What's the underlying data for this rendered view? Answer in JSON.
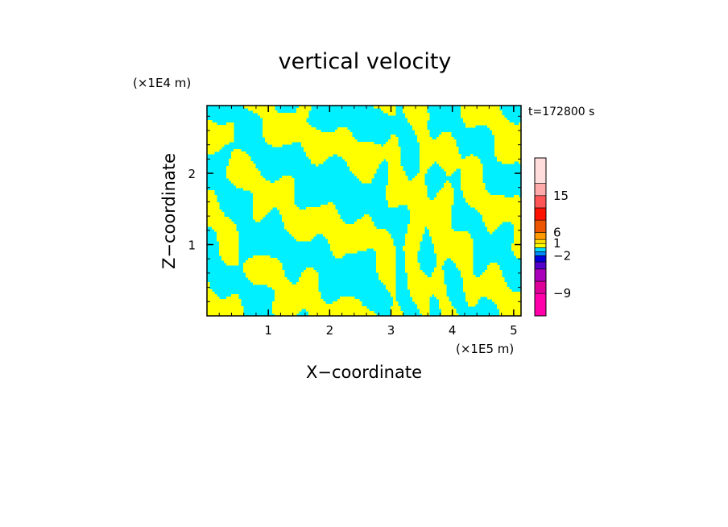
{
  "chart_data": {
    "type": "heatmap",
    "title": "vertical velocity",
    "xlabel": "X−coordinate",
    "ylabel": "Z−coordinate",
    "x_unit": "(×1E5 m)",
    "y_unit": "(×1E4 m)",
    "time_label": "t=172800 s",
    "xlim": [
      0,
      5.12
    ],
    "ylim": [
      0,
      2.95
    ],
    "x_ticks": [
      1,
      2,
      3,
      4,
      5
    ],
    "x_tick_labels": [
      "1",
      "2",
      "3",
      "4",
      "5"
    ],
    "y_ticks": [
      1,
      2
    ],
    "y_tick_labels": [
      "1",
      "2"
    ],
    "field_colors": {
      "negative": "#00f0ff",
      "positive": "#ffff00"
    },
    "colorbar": {
      "colors": [
        "#ff00aa",
        "#dd0099",
        "#aa00bb",
        "#5500cc",
        "#0000dd",
        "#0088ff",
        "#00ddff",
        "#ffff00",
        "#ffdd00",
        "#ff9900",
        "#ee5500",
        "#ff1100",
        "#ff5555",
        "#ffaaaa",
        "#ffdddd"
      ],
      "tick_labels": [
        "-9",
        "-2",
        "1",
        "6",
        "15"
      ]
    }
  }
}
